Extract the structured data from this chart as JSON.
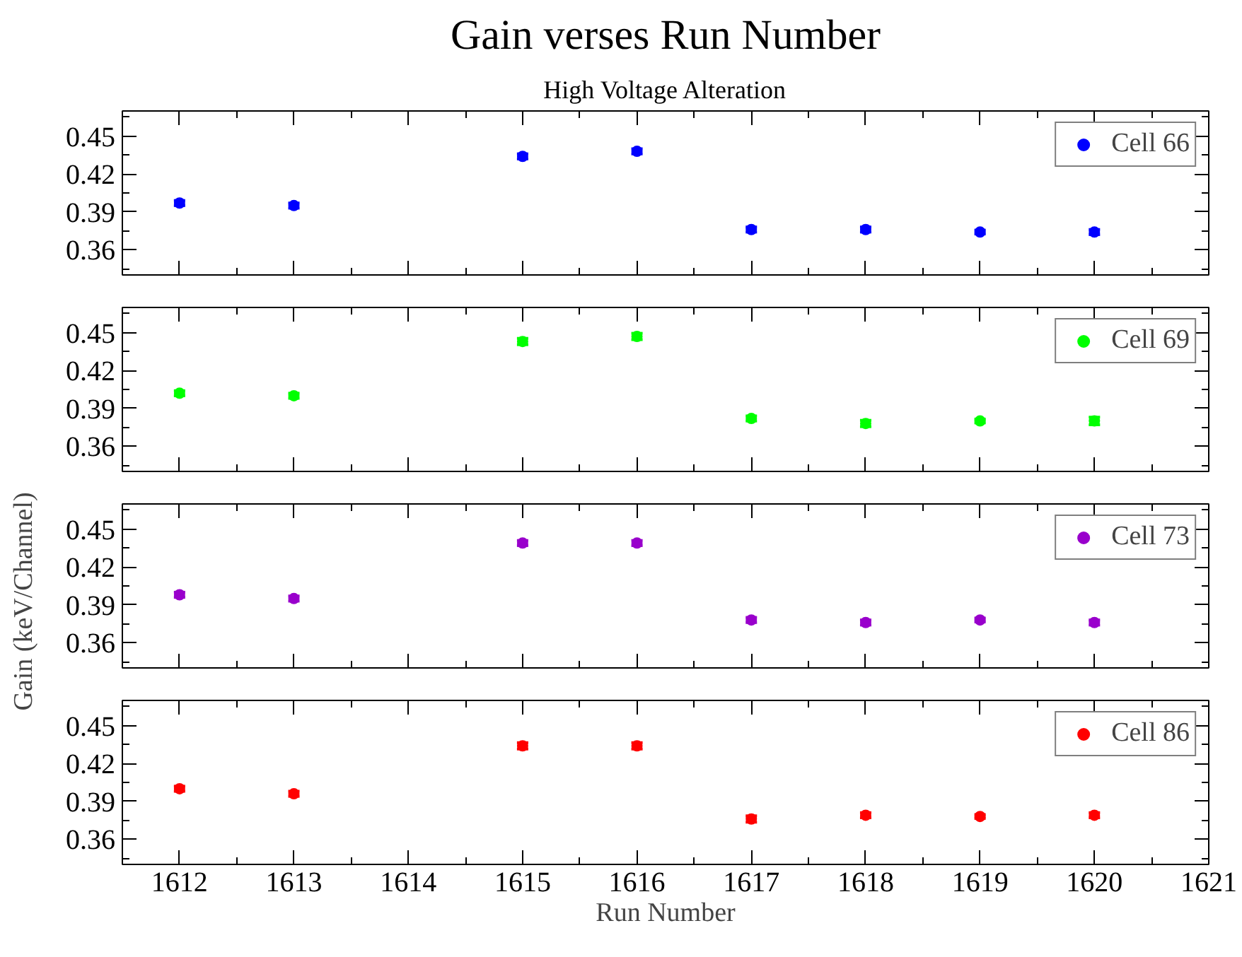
{
  "chart_data": [
    {
      "type": "scatter",
      "title": "Gain verses Run Number",
      "subtitle": "High Voltage Alteration",
      "x": [
        1612,
        1613,
        1615,
        1616,
        1617,
        1618,
        1619,
        1620
      ],
      "series": [
        {
          "name": "Cell 66",
          "color": "#0000ff",
          "values": [
            0.397,
            0.395,
            0.434,
            0.438,
            0.376,
            0.376,
            0.374,
            0.374
          ],
          "errors": [
            0.002,
            0.002,
            0.002,
            0.002,
            0.002,
            0.002,
            0.0015,
            0.002
          ]
        }
      ],
      "xlim": [
        1611.5,
        1621
      ],
      "xticks": [
        1612,
        1613,
        1614,
        1615,
        1616,
        1617,
        1618,
        1619,
        1620,
        1621
      ],
      "ylim": [
        0.34,
        0.47
      ],
      "yticks": [
        0.36,
        0.39,
        0.42,
        0.45
      ],
      "marker": "circle",
      "legend": "top right",
      "tick_labels": "y"
    },
    {
      "type": "scatter",
      "x": [
        1612,
        1613,
        1615,
        1616,
        1617,
        1618,
        1619,
        1620
      ],
      "series": [
        {
          "name": "Cell 69",
          "color": "#00ff00",
          "values": [
            0.402,
            0.4,
            0.443,
            0.447,
            0.382,
            0.378,
            0.38,
            0.38
          ],
          "errors": [
            0.002,
            0.002,
            0.0025,
            0.0025,
            0.002,
            0.0025,
            0.0015,
            0.003
          ]
        }
      ],
      "xlim": [
        1611.5,
        1621
      ],
      "xticks": [
        1612,
        1613,
        1614,
        1615,
        1616,
        1617,
        1618,
        1619,
        1620,
        1621
      ],
      "ylim": [
        0.34,
        0.47
      ],
      "yticks": [
        0.36,
        0.39,
        0.42,
        0.45
      ],
      "marker": "circle",
      "legend": "top right",
      "tick_labels": "y"
    },
    {
      "type": "scatter",
      "ylabel": "Gain (keV/Channel)",
      "x": [
        1612,
        1613,
        1615,
        1616,
        1617,
        1618,
        1619,
        1620
      ],
      "series": [
        {
          "name": "Cell 73",
          "color": "#9900cc",
          "values": [
            0.398,
            0.395,
            0.439,
            0.439,
            0.378,
            0.376,
            0.378,
            0.376
          ],
          "errors": [
            0.002,
            0.002,
            0.002,
            0.002,
            0.002,
            0.002,
            0.0015,
            0.002
          ]
        }
      ],
      "xlim": [
        1611.5,
        1621
      ],
      "xticks": [
        1612,
        1613,
        1614,
        1615,
        1616,
        1617,
        1618,
        1619,
        1620,
        1621
      ],
      "ylim": [
        0.34,
        0.47
      ],
      "yticks": [
        0.36,
        0.39,
        0.42,
        0.45
      ],
      "marker": "circle",
      "legend": "top right",
      "tick_labels": "y"
    },
    {
      "type": "scatter",
      "xlabel": "Run Number",
      "x": [
        1612,
        1613,
        1615,
        1616,
        1617,
        1618,
        1619,
        1620
      ],
      "series": [
        {
          "name": "Cell 86",
          "color": "#ff0000",
          "values": [
            0.4,
            0.396,
            0.434,
            0.434,
            0.376,
            0.379,
            0.378,
            0.379
          ],
          "errors": [
            0.002,
            0.002,
            0.0025,
            0.0025,
            0.0025,
            0.002,
            0.0015,
            0.002
          ]
        }
      ],
      "xlim": [
        1611.5,
        1621
      ],
      "xticks": [
        1612,
        1613,
        1614,
        1615,
        1616,
        1617,
        1618,
        1619,
        1620,
        1621
      ],
      "ylim": [
        0.34,
        0.47
      ],
      "yticks": [
        0.36,
        0.39,
        0.42,
        0.45
      ],
      "marker": "circle",
      "legend": "top right"
    }
  ]
}
